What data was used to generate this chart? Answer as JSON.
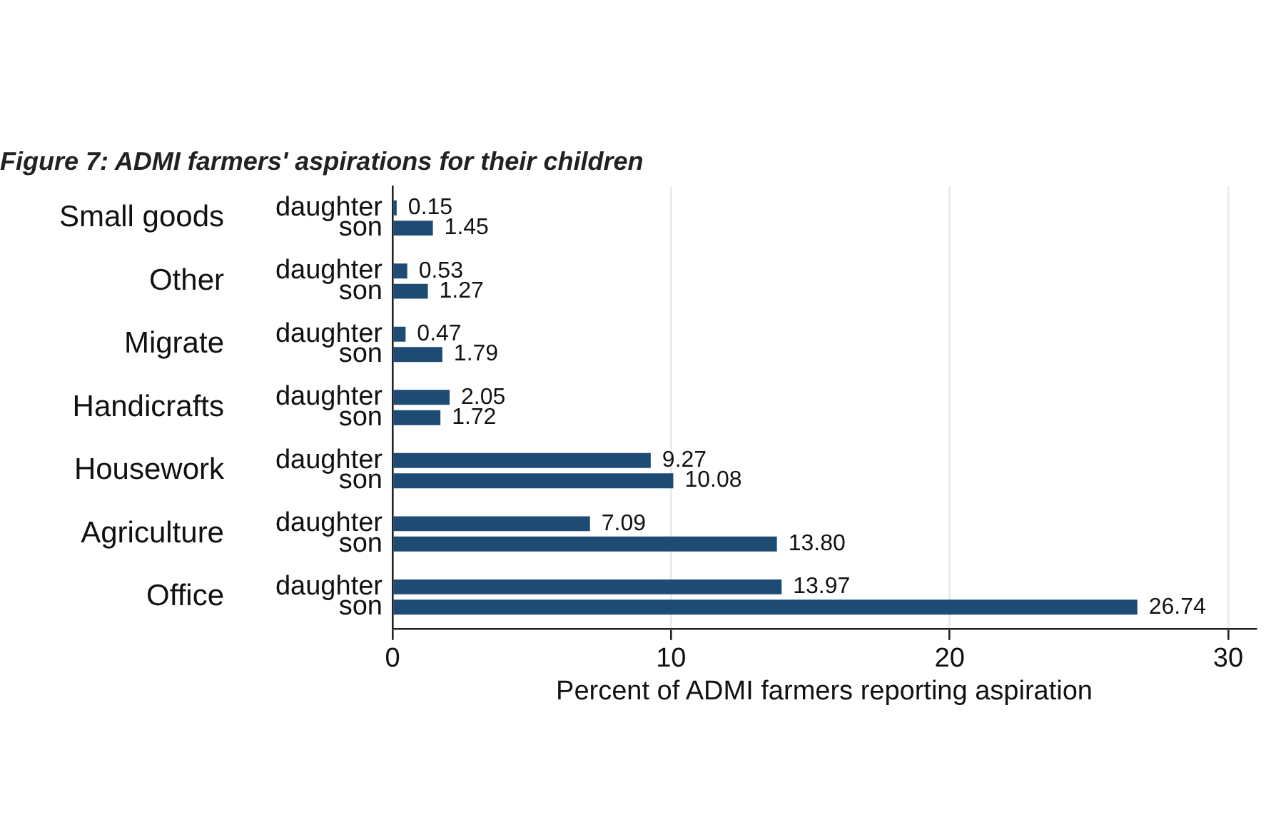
{
  "chart_data": {
    "type": "bar",
    "orientation": "horizontal",
    "title": "Figure 7: ADMI farmers' aspirations for their children",
    "xlabel": "Percent of ADMI farmers reporting aspiration",
    "categories": [
      "Small goods",
      "Other",
      "Migrate",
      "Handicrafts",
      "Housework",
      "Agriculture",
      "Office"
    ],
    "series": [
      {
        "name": "daughter",
        "color": "#1e4b73",
        "values": [
          0.15,
          0.53,
          0.47,
          2.05,
          9.27,
          7.09,
          13.97
        ],
        "value_labels": [
          "0.15",
          "0.53",
          "0.47",
          "2.05",
          "9.27",
          "7.09",
          "13.97"
        ]
      },
      {
        "name": "son",
        "color": "#1e4b73",
        "values": [
          1.45,
          1.27,
          1.79,
          1.72,
          10.08,
          13.8,
          26.74
        ],
        "value_labels": [
          "1.45",
          "1.27",
          "1.79",
          "1.72",
          "10.08",
          "13.80",
          "26.74"
        ]
      }
    ],
    "xlim": [
      0,
      31
    ],
    "xticks": [
      0,
      10,
      20,
      30
    ],
    "grid": "x"
  }
}
